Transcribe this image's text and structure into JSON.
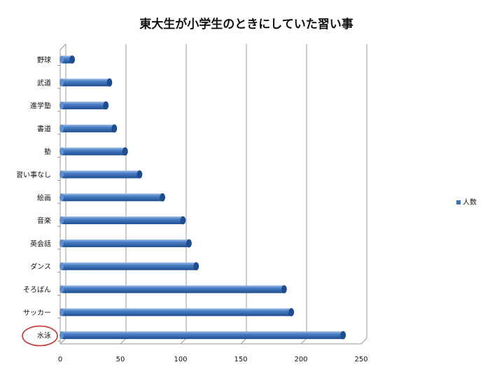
{
  "chart_data": {
    "type": "bar",
    "orientation": "horizontal",
    "style": "3d-cylinder",
    "title": "東大生が小学生のときにしていた習い事",
    "categories": [
      "野球",
      "武道",
      "進学塾",
      "書道",
      "塾",
      "習い事なし",
      "絵画",
      "音楽",
      "英会話",
      "ダンス",
      "そろばん",
      "サッカー",
      "水泳"
    ],
    "series": [
      {
        "name": "人数",
        "color": "#3d70b8",
        "values": [
          10,
          41,
          38,
          45,
          54,
          66,
          85,
          102,
          107,
          113,
          186,
          192,
          235
        ]
      }
    ],
    "xlim": [
      0,
      250
    ],
    "xticks": [
      0,
      50,
      100,
      150,
      200,
      250
    ],
    "grid": true,
    "legend": "right",
    "highlight": {
      "category": "水泳",
      "marker": "circle",
      "color": "#c0393b"
    }
  }
}
